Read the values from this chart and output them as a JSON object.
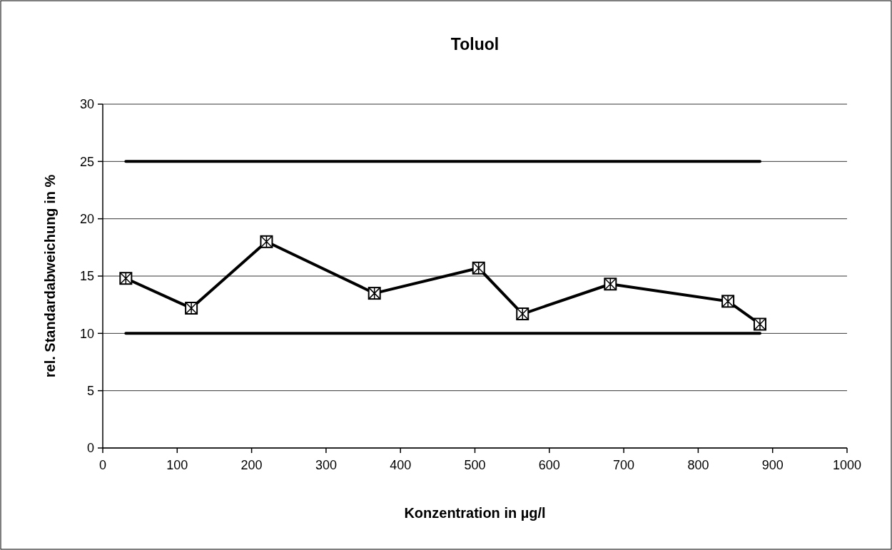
{
  "chart_data": {
    "type": "line",
    "title": "Toluol",
    "xlabel": "Konzentration in µg/l",
    "ylabel": "rel. Standardabweichung in %",
    "xlim": [
      0,
      1000
    ],
    "xticks": [
      0,
      100,
      200,
      300,
      400,
      500,
      600,
      700,
      800,
      900,
      1000
    ],
    "ylim": [
      0,
      30
    ],
    "yticks": [
      0,
      5,
      10,
      15,
      20,
      25,
      30
    ],
    "grid": "y",
    "series": [
      {
        "color": "#000000",
        "marker": "square",
        "x": [
          31,
          119,
          220,
          365,
          505,
          564,
          682,
          840,
          883
        ],
        "values": [
          14.8,
          12.2,
          18.0,
          13.5,
          15.7,
          11.7,
          14.3,
          12.8,
          10.8
        ]
      },
      {
        "color": "#000000",
        "marker": "none",
        "x": [
          31,
          883
        ],
        "values": [
          25,
          25
        ]
      },
      {
        "color": "#000000",
        "marker": "none",
        "x": [
          31,
          883
        ],
        "values": [
          10,
          10
        ]
      }
    ]
  }
}
